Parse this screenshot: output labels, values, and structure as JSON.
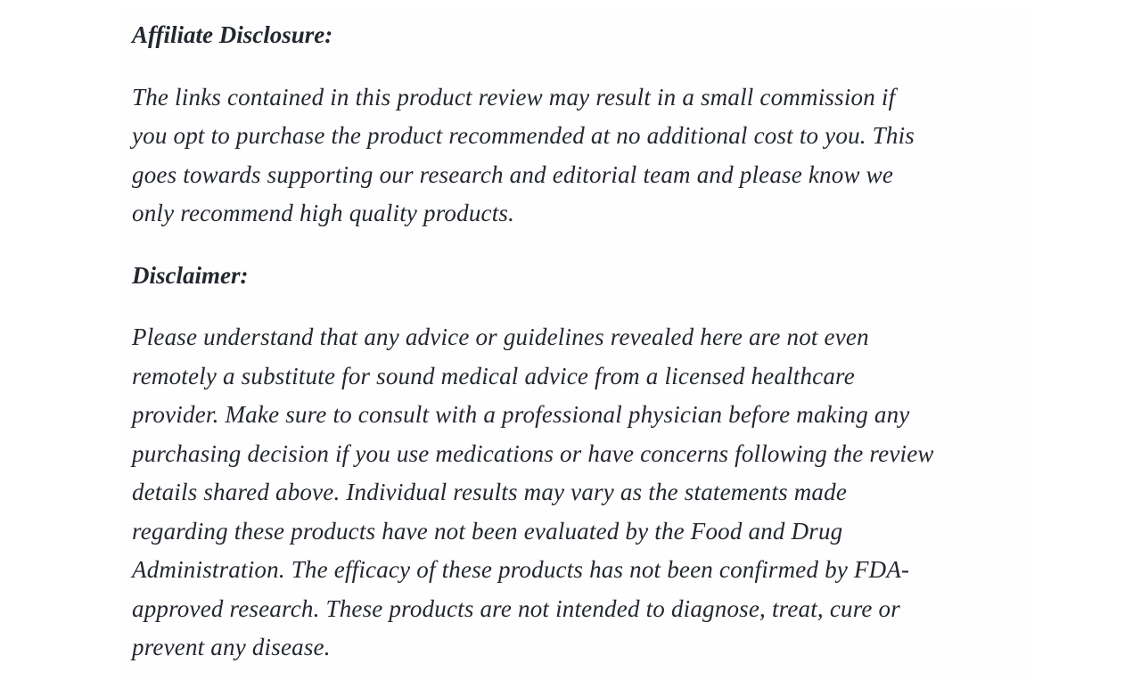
{
  "page": {
    "background_color": "#ffffff",
    "text_color": "#23272e"
  },
  "sections": [
    {
      "heading": "Affiliate Disclosure:",
      "body": "The links contained in this product review may result in a small commission if\nyou opt to purchase the product recommended at no additional cost to you. This\ngoes towards supporting our research and editorial team and please know we\nonly recommend high quality products."
    },
    {
      "heading": "Disclaimer:",
      "body": "Please understand that any advice or guidelines revealed here are not even\nremotely a substitute for sound medical advice from a licensed healthcare\nprovider. Make sure to consult with a professional physician before making any\npurchasing decision if you use medications or have concerns following the review\ndetails shared above. Individual results may vary as the statements made\nregarding these products have not been evaluated by the Food and Drug\nAdministration. The efficacy of these products has not been confirmed by FDA-\napproved research. These products are not intended to diagnose, treat, cure or\nprevent any disease."
    }
  ]
}
